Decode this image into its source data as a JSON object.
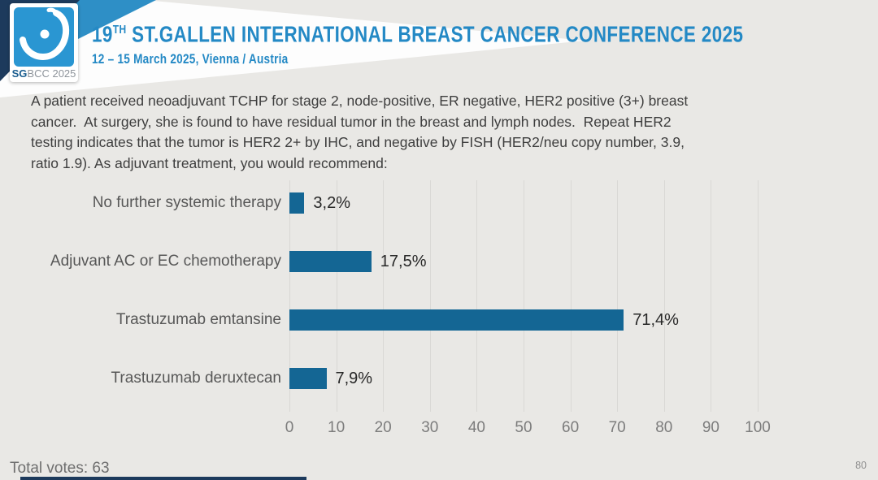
{
  "header": {
    "logo": {
      "sg": "SG",
      "rest": "BCC 2025"
    },
    "title_num": "19",
    "title_sup": "TH",
    "title_rest": "ST.GALLEN INTERNATIONAL BREAST CANCER CONFERENCE 2025",
    "subtitle": "12 – 15 March 2025, Vienna / Austria"
  },
  "question": "A patient received neoadjuvant TCHP for stage 2, node-positive, ER negative, HER2 positive (3+) breast\ncancer.  At surgery, she is found to have residual tumor in the breast and lymph nodes.  Repeat HER2\ntesting indicates that the tumor is HER2 2+ by IHC, and negative by FISH (HER2/neu copy number, 3.9,\nratio 1.9). As adjuvant treatment, you would recommend:",
  "chart_data": {
    "type": "bar",
    "orientation": "horizontal",
    "categories": [
      "No further systemic therapy",
      "Adjuvant AC or EC chemotherapy",
      "Trastuzumab emtansine",
      "Trastuzumab deruxtecan"
    ],
    "values": [
      3.2,
      17.5,
      71.4,
      7.9
    ],
    "value_labels": [
      "3,2%",
      "17,5%",
      "71,4%",
      "7,9%"
    ],
    "title": "",
    "xlabel": "",
    "ylabel": "",
    "xlim": [
      0,
      100
    ],
    "xticks": [
      0,
      10,
      20,
      30,
      40,
      50,
      60,
      70,
      80,
      90,
      100
    ],
    "grid": true,
    "legend": false,
    "bar_color": "#146694"
  },
  "footer": {
    "total_votes_label": "Total votes: 63",
    "page_number": "80"
  },
  "colors": {
    "accent_blue": "#2489c5",
    "bar_blue": "#146694",
    "navy": "#1d3a5c",
    "logo_blue": "#2a96d2",
    "slide_bg": "#e9e8e5"
  }
}
